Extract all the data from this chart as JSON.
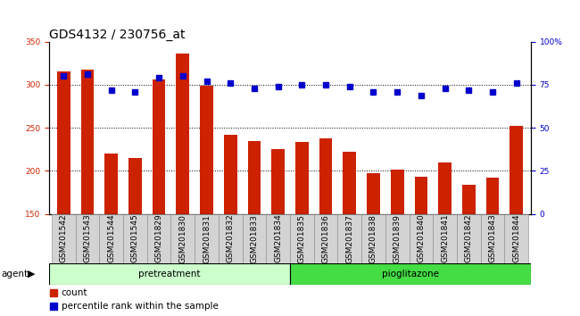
{
  "title": "GDS4132 / 230756_at",
  "samples": [
    "GSM201542",
    "GSM201543",
    "GSM201544",
    "GSM201545",
    "GSM201829",
    "GSM201830",
    "GSM201831",
    "GSM201832",
    "GSM201833",
    "GSM201834",
    "GSM201835",
    "GSM201836",
    "GSM201837",
    "GSM201838",
    "GSM201839",
    "GSM201840",
    "GSM201841",
    "GSM201842",
    "GSM201843",
    "GSM201844"
  ],
  "counts": [
    315,
    318,
    220,
    215,
    306,
    336,
    299,
    242,
    235,
    225,
    234,
    238,
    222,
    197,
    201,
    193,
    210,
    184,
    192,
    252
  ],
  "percentiles": [
    80,
    81,
    72,
    71,
    79,
    80,
    77,
    76,
    73,
    74,
    75,
    75,
    74,
    71,
    71,
    69,
    73,
    72,
    71,
    76
  ],
  "pretreatment_count": 10,
  "pioglitazone_count": 10,
  "ylim_left": [
    150,
    350
  ],
  "ylim_right": [
    0,
    100
  ],
  "yticks_left": [
    150,
    200,
    250,
    300,
    350
  ],
  "yticks_right": [
    0,
    25,
    50,
    75,
    100
  ],
  "bar_color": "#cc2200",
  "dot_color": "#0000cc",
  "pretreatment_color": "#ccffcc",
  "pioglitazone_color": "#44dd44",
  "legend_count": "count",
  "legend_percentile": "percentile rank within the sample",
  "tick_label_color_left": "#cc2200",
  "tick_label_color_right": "#0000cc",
  "bar_bottom": 150,
  "title_fontsize": 10,
  "tick_fontsize": 6.5,
  "agent_fontsize": 7.5,
  "legend_fontsize": 7.5
}
